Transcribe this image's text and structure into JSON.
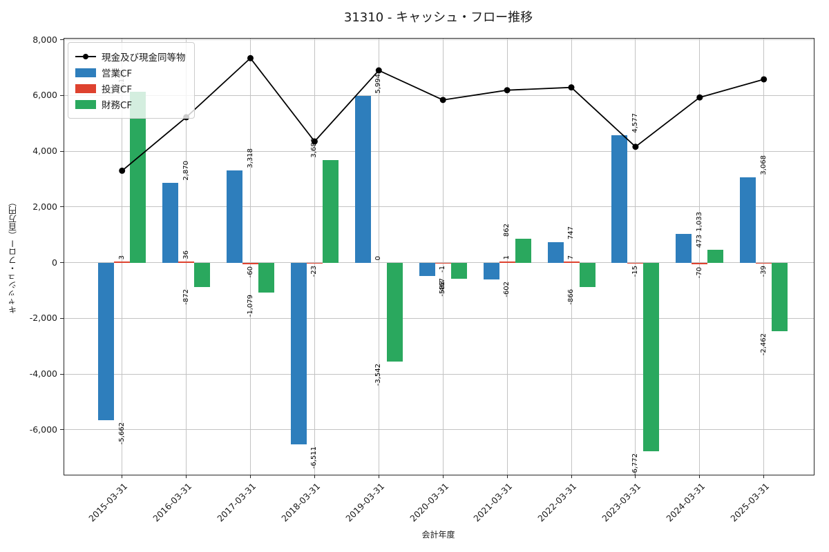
{
  "chart_data": {
    "type": "bar",
    "title": "31310 - キャッシュ・フロー推移",
    "xlabel": "会計年度",
    "ylabel": "キャッシュ・フロー（百万円）",
    "categories": [
      "2015-03-31",
      "2016-03-31",
      "2017-03-31",
      "2018-03-31",
      "2019-03-31",
      "2020-03-31",
      "2021-03-31",
      "2022-03-31",
      "2023-03-31",
      "2024-03-31",
      "2025-03-31"
    ],
    "series": [
      {
        "name": "現金及び現金同等物",
        "type": "line",
        "color": "#000000",
        "values": [
          3300,
          5220,
          7340,
          4350,
          6900,
          5840,
          6190,
          6290,
          4160,
          5930,
          6580
        ]
      },
      {
        "name": "営業CF",
        "type": "bar",
        "color": "#2e7ebc",
        "values": [
          -5662,
          2870,
          3318,
          -6511,
          5994,
          -467,
          -602,
          747,
          4577,
          1033,
          3068
        ]
      },
      {
        "name": "投資CF",
        "type": "bar",
        "color": "#de422f",
        "values": [
          3,
          36,
          -60,
          -23,
          0,
          -1,
          1,
          7,
          -15,
          -70,
          -39
        ]
      },
      {
        "name": "財務CF",
        "type": "bar",
        "color": "#2aa85e",
        "values": [
          6132,
          -872,
          -1079,
          3680,
          -3542,
          -588,
          862,
          -866,
          -6772,
          473,
          -2462
        ]
      }
    ],
    "yticks": [
      8000,
      6000,
      4000,
      2000,
      0,
      -2000,
      -4000,
      -6000
    ],
    "ylim": [
      -7610,
      8040
    ],
    "grid": true,
    "legend_position": "upper left"
  }
}
